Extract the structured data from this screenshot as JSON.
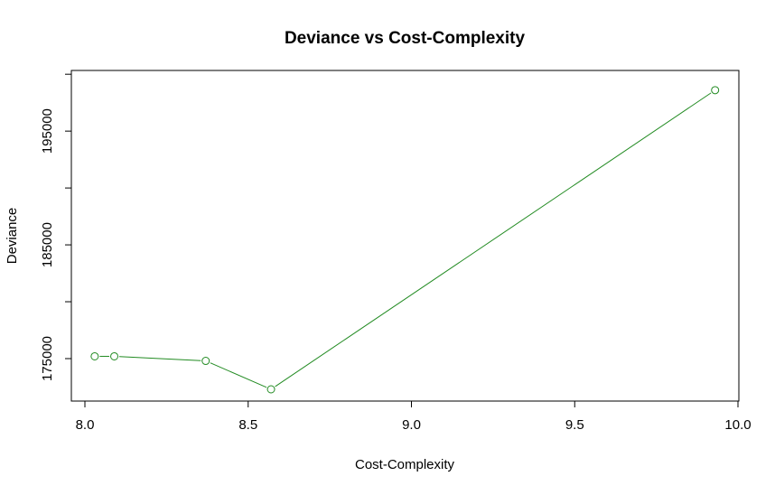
{
  "chart_data": {
    "type": "line",
    "title": "Deviance vs Cost-Complexity",
    "xlabel": "Cost-Complexity",
    "ylabel": "Deviance",
    "xlim": [
      8.0,
      10.0
    ],
    "ylim": [
      172300,
      199300
    ],
    "x_ticks": [
      8.0,
      8.5,
      9.0,
      9.5,
      10.0
    ],
    "x_tick_labels": [
      "8.0",
      "8.5",
      "9.0",
      "9.5",
      "10.0"
    ],
    "y_ticks": [
      175000,
      180000,
      185000,
      190000,
      195000,
      200000
    ],
    "y_tick_labels": [
      "175000",
      "",
      "185000",
      "",
      "195000",
      ""
    ],
    "grid": false,
    "legend": "none",
    "color": "#228B22",
    "series": [
      {
        "x": [
          8.03,
          8.09,
          8.37,
          8.57,
          9.93
        ],
        "y": [
          175200,
          175200,
          174800,
          172300,
          198600
        ]
      }
    ]
  }
}
